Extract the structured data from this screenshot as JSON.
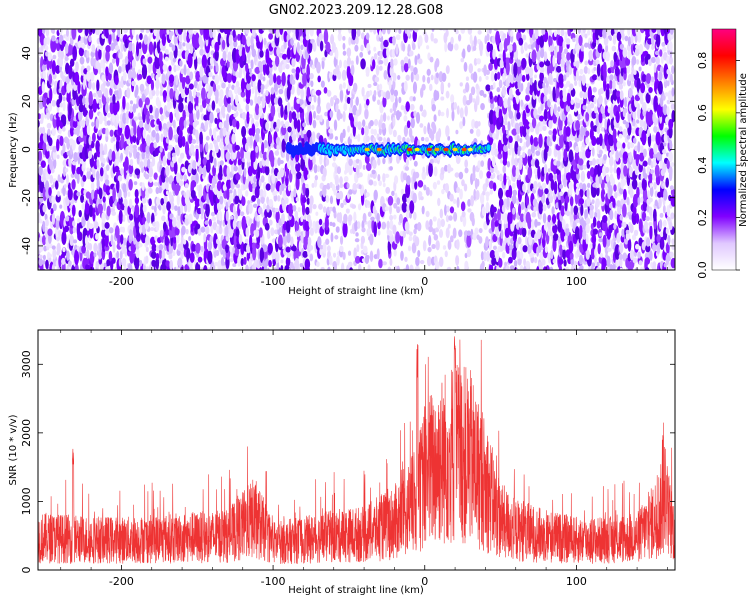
{
  "figure": {
    "title": "GN02.2023.209.12.28.G08"
  },
  "chart_data": [
    {
      "type": "heatmap",
      "xlabel": "Height of straight line (km)",
      "ylabel": "Frequency (Hz)",
      "xlim": [
        -255,
        165
      ],
      "ylim": [
        -50,
        50
      ],
      "xticks": [
        -200,
        -100,
        0,
        100
      ],
      "yticks": [
        -40,
        -20,
        0,
        20,
        40
      ],
      "grid": false,
      "colorbar": {
        "label": "Normalized spectral amplitude",
        "range": [
          0,
          0.92
        ],
        "ticks": [
          0.0,
          0.2,
          0.4,
          0.6,
          0.8
        ],
        "colormap": [
          "#ffffff",
          "#e0c8ff",
          "#8000ff",
          "#0000ff",
          "#00ffff",
          "#00ff00",
          "#ffff00",
          "#ff8000",
          "#ff0000",
          "#ff0080"
        ]
      },
      "signal": {
        "x_range": [
          -90,
          42
        ],
        "frequency": 0,
        "noise_gap": [
          -5,
          40
        ]
      }
    },
    {
      "type": "line",
      "xlabel": "Height of straight line (km)",
      "ylabel": "SNR (10 * v/v)",
      "xlim": [
        -255,
        165
      ],
      "ylim": [
        0,
        3500
      ],
      "xticks": [
        -200,
        -100,
        0,
        100
      ],
      "yticks": [
        0,
        1000,
        2000,
        3000
      ],
      "color": "#ee3333",
      "grid": false,
      "envelope_x": [
        -255,
        -230,
        -200,
        -170,
        -130,
        -112,
        -100,
        -80,
        -60,
        -40,
        -20,
        -5,
        0,
        10,
        20,
        30,
        40,
        50,
        60,
        80,
        100,
        120,
        140,
        150,
        158,
        165
      ],
      "envelope_y": [
        650,
        620,
        600,
        630,
        680,
        1050,
        550,
        600,
        680,
        720,
        950,
        1400,
        1900,
        2200,
        2400,
        2250,
        1700,
        1000,
        800,
        680,
        600,
        600,
        650,
        950,
        1300,
        750
      ],
      "spikes": [
        {
          "x": -232,
          "y": 1800
        },
        {
          "x": -112,
          "y": 1250
        },
        {
          "x": -5,
          "y": 3300
        },
        {
          "x": 20,
          "y": 3450
        },
        {
          "x": 157,
          "y": 2200
        }
      ]
    }
  ]
}
